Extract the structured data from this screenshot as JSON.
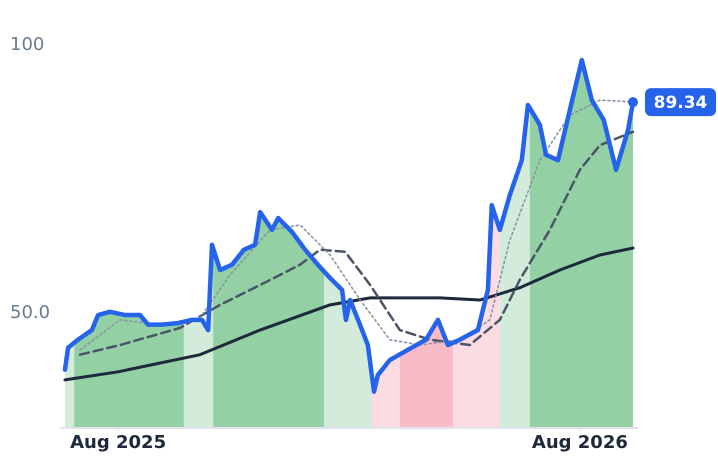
{
  "chart_data": {
    "type": "line",
    "xlim": [
      -1.38,
      13.38
    ],
    "ylim": [
      28.7,
      108.4
    ],
    "xticks": [
      {
        "value": 0,
        "label": "Aug 2025"
      },
      {
        "value": 12,
        "label": "Aug 2026"
      }
    ],
    "yticks": [
      {
        "value": 50,
        "label": "50.0"
      },
      100
    ],
    "bands": [
      {
        "start": -1.38,
        "end": -1.14,
        "color": "#d3ebda"
      },
      {
        "start": -1.14,
        "end": 1.71,
        "color": "#93d0a4"
      },
      {
        "start": 1.71,
        "end": 2.47,
        "color": "#d3ebda"
      },
      {
        "start": 2.47,
        "end": 5.35,
        "color": "#93d0a4"
      },
      {
        "start": 5.35,
        "end": 6.6,
        "color": "#d3ebda"
      },
      {
        "start": 6.6,
        "end": 7.32,
        "color": "#fcdbe2"
      },
      {
        "start": 7.32,
        "end": 8.7,
        "color": "#f8bcc8"
      },
      {
        "start": 8.7,
        "end": 9.92,
        "color": "#fcdbe2"
      },
      {
        "start": 9.92,
        "end": 10.7,
        "color": "#d3ebda"
      },
      {
        "start": 10.7,
        "end": 13.38,
        "color": "#93d0a4"
      }
    ],
    "series": [
      {
        "color": "#2563eb",
        "style": "solid",
        "width": 4.5,
        "x": [
          -1.38,
          -1.3,
          -1.04,
          -0.68,
          -0.52,
          -0.21,
          0.18,
          0.57,
          0.78,
          1.14,
          1.56,
          1.92,
          2.18,
          2.34,
          2.44,
          2.65,
          2.96,
          3.27,
          3.56,
          3.69,
          4.0,
          4.16,
          4.52,
          4.86,
          5.19,
          5.51,
          5.82,
          5.92,
          6.03,
          6.34,
          6.49,
          6.65,
          6.75,
          7.06,
          7.53,
          8.0,
          8.31,
          8.57,
          8.88,
          9.35,
          9.61,
          9.71,
          9.92,
          10.18,
          10.49,
          10.65,
          10.96,
          11.12,
          11.43,
          11.74,
          12.05,
          12.31,
          12.62,
          12.94,
          13.25,
          13.38
        ],
        "values": [
          39.4,
          43.5,
          45.0,
          46.8,
          49.6,
          50.2,
          49.6,
          49.6,
          47.8,
          47.8,
          48.1,
          48.7,
          48.7,
          46.8,
          62.7,
          58.0,
          59.0,
          61.8,
          62.7,
          68.8,
          65.5,
          67.7,
          65.1,
          61.8,
          59.0,
          56.5,
          54.3,
          48.7,
          52.4,
          46.8,
          44.0,
          35.3,
          38.4,
          41.2,
          43.1,
          45.0,
          48.7,
          44.0,
          45.0,
          46.8,
          54.3,
          70.1,
          65.5,
          72.0,
          78.5,
          88.8,
          85.1,
          79.5,
          78.5,
          87.9,
          97.2,
          89.7,
          86.0,
          76.7,
          84.1,
          89.34
        ]
      },
      {
        "color": "#8a94a6",
        "style": "dotted",
        "width": 1.6,
        "x": [
          -0.99,
          0.05,
          1.09,
          2.13,
          2.91,
          3.95,
          4.73,
          5.51,
          6.29,
          7.06,
          7.84,
          8.88,
          9.66,
          10.18,
          10.96,
          11.74,
          12.52,
          13.38
        ],
        "values": [
          43.1,
          48.7,
          47.8,
          49.1,
          57.1,
          65.5,
          66.4,
          60.8,
          52.4,
          45.0,
          44.0,
          45.0,
          48.7,
          63.6,
          78.5,
          86.9,
          89.7,
          89.4
        ]
      },
      {
        "color": "#4a5568",
        "style": "dashed",
        "width": 2.5,
        "x": [
          -0.99,
          0.05,
          1.61,
          2.65,
          3.69,
          4.73,
          5.25,
          5.9,
          6.55,
          7.32,
          8.1,
          9.14,
          9.92,
          10.44,
          11.22,
          12.0,
          12.52,
          13.38
        ],
        "values": [
          42.2,
          44.0,
          47.2,
          51.5,
          55.2,
          59.0,
          61.8,
          61.4,
          55.2,
          46.8,
          45.0,
          44.0,
          48.7,
          56.2,
          65.5,
          76.7,
          81.3,
          83.8
        ]
      },
      {
        "color": "#1e293b",
        "style": "solid",
        "width": 3,
        "x": [
          -1.38,
          0,
          2.13,
          3.69,
          5.51,
          6.55,
          8.36,
          9.4,
          10.44,
          11.48,
          12.52,
          13.38
        ],
        "values": [
          37.5,
          39.0,
          42.2,
          46.8,
          51.5,
          52.8,
          52.8,
          52.4,
          54.7,
          58.0,
          60.8,
          62.1
        ]
      }
    ]
  }
}
